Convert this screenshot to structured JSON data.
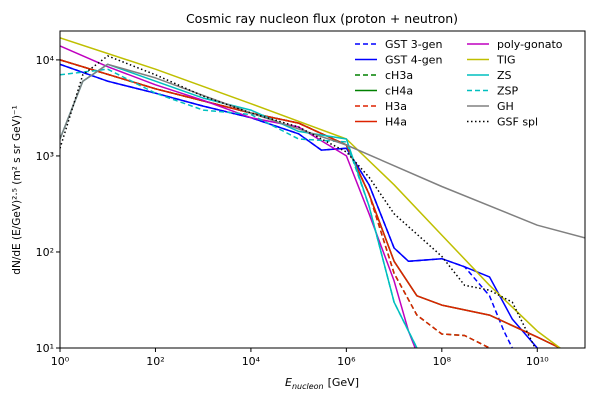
{
  "chart_data": {
    "type": "line",
    "title": "Cosmic ray nucleon flux (proton + neutron)",
    "xlabel": {
      "main": "E",
      "sub": "nucleon",
      "unit": "[GeV]"
    },
    "ylabel": "dN/dE (E/GeV)²·⁵ (m² s sr GeV)⁻¹",
    "xscale": "log",
    "yscale": "log",
    "xlim": [
      1,
      100000000000
    ],
    "ylim": [
      10,
      20000
    ],
    "xticks": [
      {
        "value": 1,
        "label": "10⁰"
      },
      {
        "value": 100,
        "label": "10²"
      },
      {
        "value": 10000,
        "label": "10⁴"
      },
      {
        "value": 1000000,
        "label": "10⁶"
      },
      {
        "value": 100000000,
        "label": "10⁸"
      },
      {
        "value": 10000000000,
        "label": "10¹⁰"
      }
    ],
    "yticks": [
      {
        "value": 10,
        "label": "10¹"
      },
      {
        "value": 100,
        "label": "10²"
      },
      {
        "value": 1000,
        "label": "10³"
      },
      {
        "value": 10000,
        "label": "10⁴"
      }
    ],
    "grid": false,
    "legend": "upper right",
    "legend_columns": 2,
    "series": [
      {
        "name": "GST 3-gen",
        "color": "#0000ff",
        "linestyle": "dashed",
        "x": [
          1,
          10,
          100,
          1000,
          10000,
          100000,
          300000,
          1000000,
          3000000,
          10000000,
          20000000,
          100000000,
          300000000,
          1000000000,
          2000000000,
          3000000000
        ],
        "values": [
          9000,
          6000,
          4500,
          3300,
          2500,
          1700,
          1150,
          1200,
          500,
          110,
          80,
          85,
          70,
          35,
          15,
          10
        ]
      },
      {
        "name": "GST 4-gen",
        "color": "#0000ff",
        "linestyle": "solid",
        "x": [
          1,
          10,
          100,
          1000,
          10000,
          100000,
          300000,
          1000000,
          3000000,
          10000000,
          20000000,
          100000000,
          300000000,
          1000000000,
          3000000000,
          10000000000
        ],
        "values": [
          9000,
          6000,
          4500,
          3300,
          2500,
          1700,
          1150,
          1200,
          500,
          110,
          80,
          85,
          70,
          55,
          20,
          10
        ]
      },
      {
        "name": "cH3a",
        "color": "#008000",
        "linestyle": "dashed",
        "x": [
          1,
          100,
          10000,
          100000,
          1000000,
          3000000,
          10000000,
          30000000,
          100000000,
          300000000,
          1000000000
        ],
        "values": [
          10000,
          5000,
          2800,
          2200,
          1300,
          400,
          60,
          22,
          14,
          13.5,
          10
        ]
      },
      {
        "name": "cH4a",
        "color": "#008000",
        "linestyle": "solid",
        "x": [
          1,
          100,
          10000,
          100000,
          1000000,
          3000000,
          10000000,
          30000000,
          100000000,
          1000000000,
          10000000000,
          30000000000
        ],
        "values": [
          10000,
          5000,
          2800,
          2200,
          1300,
          400,
          80,
          35,
          28,
          22,
          13,
          10
        ]
      },
      {
        "name": "H3a",
        "color": "#dd2200",
        "linestyle": "dashed",
        "x": [
          1,
          100,
          10000,
          100000,
          1000000,
          3000000,
          10000000,
          30000000,
          100000000,
          300000000,
          1000000000
        ],
        "values": [
          10000,
          5000,
          2800,
          2200,
          1300,
          400,
          60,
          22,
          14,
          13.5,
          10
        ]
      },
      {
        "name": "H4a",
        "color": "#dd2200",
        "linestyle": "solid",
        "x": [
          1,
          100,
          10000,
          100000,
          1000000,
          3000000,
          10000000,
          30000000,
          100000000,
          1000000000,
          10000000000,
          30000000000
        ],
        "values": [
          10000,
          5000,
          2800,
          2200,
          1300,
          400,
          80,
          35,
          28,
          22,
          13,
          10
        ]
      },
      {
        "name": "poly-gonato",
        "color": "#bf00bf",
        "linestyle": "solid",
        "x": [
          1,
          10,
          100,
          1000,
          10000,
          100000,
          1000000,
          3000000,
          10000000,
          20000000,
          30000000
        ],
        "values": [
          14000,
          8500,
          5500,
          3800,
          2500,
          2000,
          1000,
          250,
          50,
          15,
          9
        ]
      },
      {
        "name": "TIG",
        "color": "#bfbf00",
        "linestyle": "solid",
        "x": [
          1,
          100,
          10000,
          1000000,
          10000000,
          100000000,
          1000000000,
          10000000000,
          30000000000
        ],
        "values": [
          17000,
          8000,
          3500,
          1500,
          500,
          150,
          45,
          15,
          10
        ]
      },
      {
        "name": "ZS",
        "color": "#00bfbf",
        "linestyle": "solid",
        "x": [
          1,
          3,
          10,
          100,
          1000,
          10000,
          100000,
          1000000,
          3000000,
          10000000,
          30000000
        ],
        "values": [
          1500,
          6000,
          9000,
          6000,
          4000,
          3000,
          1800,
          1500,
          300,
          30,
          10
        ]
      },
      {
        "name": "ZSP",
        "color": "#00bfbf",
        "linestyle": "dashed",
        "x": [
          1,
          10,
          100,
          1000,
          10000,
          100000,
          1000000,
          3000000,
          10000000,
          30000000
        ],
        "values": [
          7000,
          8000,
          4500,
          3000,
          2700,
          1500,
          1400,
          300,
          30,
          10
        ]
      },
      {
        "name": "GH",
        "color": "#808080",
        "linestyle": "solid",
        "x": [
          1,
          3,
          10,
          100,
          10000,
          1000000,
          100000000,
          10000000000,
          100000000000
        ],
        "values": [
          1500,
          6000,
          9000,
          6500,
          2800,
          1300,
          480,
          190,
          140
        ]
      },
      {
        "name": "GSF spl",
        "color": "#000000",
        "linestyle": "dotted",
        "x": [
          1,
          3,
          10,
          100,
          1000,
          10000,
          100000,
          1000000,
          3000000,
          10000000,
          100000000,
          300000000,
          1000000000,
          3000000000,
          10000000000
        ],
        "values": [
          1200,
          7000,
          11000,
          7000,
          4200,
          2800,
          2000,
          1100,
          600,
          250,
          90,
          45,
          40,
          30,
          9
        ]
      }
    ]
  }
}
